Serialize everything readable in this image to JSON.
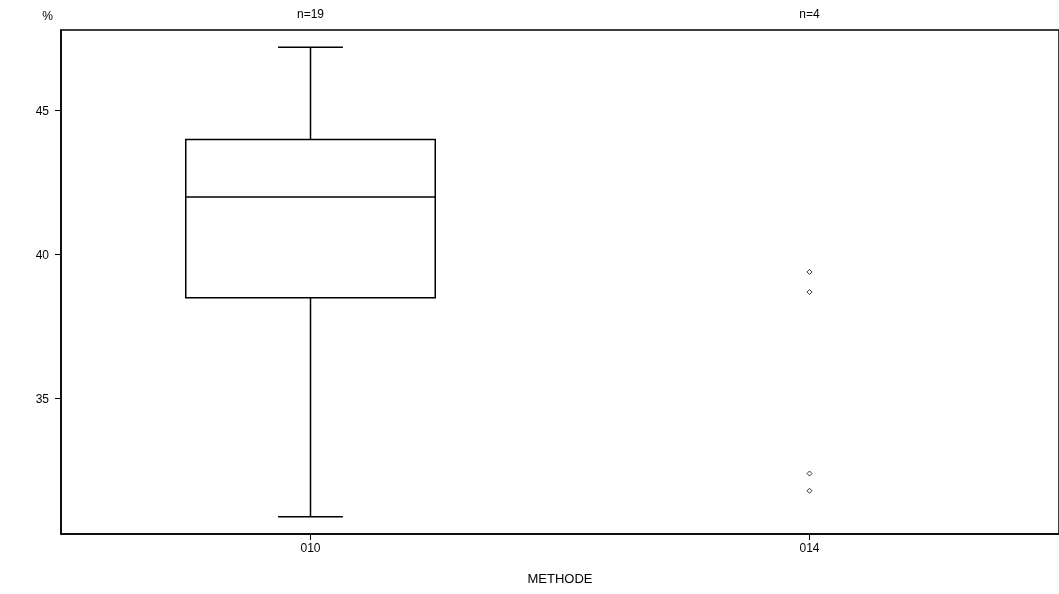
{
  "chart_data": {
    "type": "box",
    "ylabel": "%",
    "xlabel": "METHODE",
    "categories": [
      "010",
      "014"
    ],
    "boxes": [
      {
        "low": 30.9,
        "q1": 38.5,
        "median": 42,
        "q3": 44,
        "high": 47.2
      },
      null
    ],
    "series": [
      {
        "type": "scatter",
        "color": "#000000",
        "x": [
          "014",
          "014",
          "014",
          "014"
        ],
        "values": [
          39.4,
          38.7,
          32.4,
          31.8
        ],
        "marker": "diamond"
      }
    ],
    "color": "#000000",
    "ylim": [
      30.3,
      47.8
    ],
    "yticks": [
      35,
      40,
      45
    ],
    "grid": false,
    "annotations": [
      "n=19",
      "n=4"
    ]
  }
}
